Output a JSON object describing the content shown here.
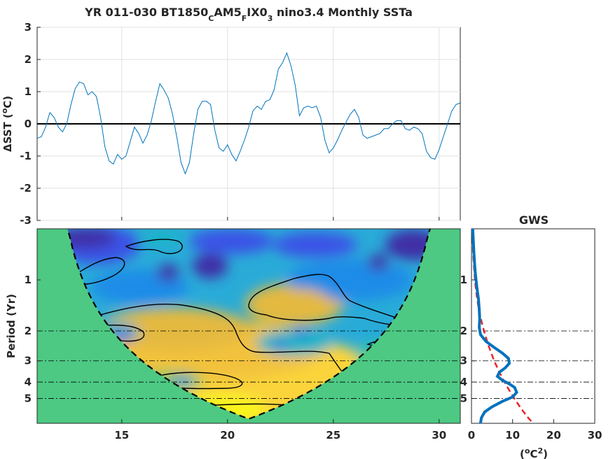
{
  "chart_data": [
    {
      "type": "line",
      "title": "YR 011-030 BT1850CAM5FIX03 nino3.4 Monthly SSTa",
      "title_parts": [
        {
          "text": "YR 011-030 BT1850",
          "sub": false
        },
        {
          "text": "C",
          "sub": true
        },
        {
          "text": "AM5",
          "sub": false
        },
        {
          "text": "F",
          "sub": true
        },
        {
          "text": "IX0",
          "sub": false
        },
        {
          "text": "3",
          "sub": true
        },
        {
          "text": " nino3.4 Monthly SSTa",
          "sub": false
        }
      ],
      "ylabel": "ΔSST (°C)",
      "ylabel_parts": [
        {
          "text": "ΔSST (",
          "sup": false
        },
        {
          "text": "o",
          "sup": true
        },
        {
          "text": "C)",
          "sup": false
        }
      ],
      "xlim": [
        11,
        31
      ],
      "ylim": [
        -3,
        3
      ],
      "yticks": [
        -3,
        -2,
        -1,
        0,
        1,
        2,
        3
      ],
      "xticks_grid": [
        15,
        20,
        25,
        30
      ],
      "grid": true,
      "zero_line": true,
      "line_color": "#0072BD",
      "x": [
        11.0,
        11.2,
        11.4,
        11.6,
        11.8,
        12.0,
        12.2,
        12.4,
        12.6,
        12.8,
        13.0,
        13.2,
        13.4,
        13.6,
        13.8,
        14.0,
        14.2,
        14.4,
        14.6,
        14.8,
        15.0,
        15.2,
        15.4,
        15.6,
        15.8,
        16.0,
        16.2,
        16.4,
        16.6,
        16.8,
        17.0,
        17.2,
        17.4,
        17.6,
        17.8,
        18.0,
        18.2,
        18.4,
        18.6,
        18.8,
        19.0,
        19.2,
        19.4,
        19.6,
        19.8,
        20.0,
        20.2,
        20.4,
        20.6,
        20.8,
        21.0,
        21.2,
        21.4,
        21.6,
        21.8,
        22.0,
        22.2,
        22.4,
        22.6,
        22.8,
        23.0,
        23.2,
        23.4,
        23.6,
        23.8,
        24.0,
        24.2,
        24.4,
        24.6,
        24.8,
        25.0,
        25.2,
        25.4,
        25.6,
        25.8,
        26.0,
        26.2,
        26.4,
        26.6,
        26.8,
        27.0,
        27.2,
        27.4,
        27.6,
        27.8,
        28.0,
        28.2,
        28.4,
        28.6,
        28.8,
        29.0,
        29.2,
        29.4,
        29.6,
        29.8,
        30.0,
        30.2,
        30.4,
        30.6,
        30.8,
        31.0
      ],
      "y": [
        -0.45,
        -0.4,
        -0.1,
        0.35,
        0.2,
        -0.1,
        -0.25,
        0.0,
        0.6,
        1.1,
        1.3,
        1.25,
        0.9,
        1.0,
        0.85,
        0.2,
        -0.7,
        -1.15,
        -1.25,
        -0.95,
        -1.1,
        -1.0,
        -0.55,
        -0.1,
        -0.3,
        -0.6,
        -0.35,
        0.1,
        0.7,
        1.25,
        1.05,
        0.8,
        0.3,
        -0.4,
        -1.2,
        -1.55,
        -1.2,
        -0.3,
        0.45,
        0.7,
        0.7,
        0.6,
        -0.2,
        -0.75,
        -0.85,
        -0.65,
        -0.95,
        -1.15,
        -0.85,
        -0.5,
        -0.1,
        0.4,
        0.55,
        0.45,
        0.7,
        0.75,
        1.05,
        1.7,
        1.9,
        2.2,
        1.8,
        1.2,
        0.25,
        0.5,
        0.55,
        0.5,
        0.55,
        0.2,
        -0.5,
        -0.9,
        -0.75,
        -0.5,
        -0.2,
        0.05,
        0.3,
        0.45,
        0.2,
        -0.35,
        -0.45,
        -0.4,
        -0.35,
        -0.3,
        -0.15,
        -0.15,
        0.0,
        0.1,
        0.1,
        -0.15,
        -0.2,
        -0.1,
        -0.15,
        -0.3,
        -0.85,
        -1.05,
        -1.1,
        -0.8,
        -0.4,
        0.0,
        0.4,
        0.6,
        0.65
      ]
    },
    {
      "type": "heatmap",
      "ylabel": "Period (Yr)",
      "xlim": [
        11,
        31
      ],
      "xticks": [
        15,
        20,
        25,
        30
      ],
      "yticks": [
        1,
        2,
        3,
        4,
        5
      ],
      "y_scale": "log2",
      "period_range": [
        0.5,
        7.0
      ],
      "reference_periods": [
        2,
        3,
        4,
        5
      ],
      "coi_fill_color": "#4DC983",
      "colormap": [
        "#3F2FA6",
        "#3A53E6",
        "#1C8CE8",
        "#1CB4C8",
        "#2EC6A0",
        "#8AC760",
        "#E4B93F",
        "#FBD43A",
        "#F9F51A"
      ],
      "significance_contour_color": "#000000",
      "coi_line_style": "dashed"
    },
    {
      "type": "line",
      "title": "GWS",
      "xlabel": "(°C2)",
      "xlabel_parts": [
        {
          "text": "(",
          "sup": false
        },
        {
          "text": "o",
          "sup": true
        },
        {
          "text": "C",
          "sup": false
        },
        {
          "text": "2",
          "sup": true
        },
        {
          "text": ")",
          "sup": false
        }
      ],
      "xlim": [
        0,
        30
      ],
      "xticks": [
        0,
        10,
        20,
        30
      ],
      "yticks": [
        1,
        2,
        3,
        4,
        5
      ],
      "y_scale": "log2",
      "reference_periods": [
        2,
        3,
        4,
        5
      ],
      "series": [
        {
          "color": "#0072BD",
          "style": "solid",
          "period": [
            0.5,
            0.7,
            0.9,
            1.1,
            1.3,
            1.5,
            1.7,
            1.9,
            2.1,
            2.3,
            2.5,
            2.7,
            2.9,
            3.1,
            3.3,
            3.5,
            3.7,
            3.9,
            4.1,
            4.3,
            4.6,
            4.9,
            5.2,
            5.6,
            6.0,
            6.5,
            7.0
          ],
          "power": [
            0.3,
            0.6,
            0.9,
            1.3,
            1.7,
            1.9,
            2.0,
            1.9,
            2.2,
            3.5,
            5.5,
            7.5,
            9.0,
            9.2,
            8.2,
            6.8,
            6.3,
            7.5,
            9.2,
            10.5,
            11.0,
            10.0,
            7.5,
            5.0,
            3.2,
            2.4,
            2.2
          ]
        },
        {
          "color": "#E8262B",
          "style": "dashed",
          "period": [
            0.5,
            0.7,
            0.9,
            1.1,
            1.3,
            1.5,
            1.7,
            1.9,
            2.1,
            2.3,
            2.5,
            2.7,
            2.9,
            3.1,
            3.3,
            3.5,
            3.7,
            3.9,
            4.1,
            4.3,
            4.6,
            4.9,
            5.2,
            5.6,
            6.0,
            6.5,
            7.0
          ],
          "power": [
            0.2,
            0.4,
            0.7,
            1.0,
            1.4,
            1.8,
            2.3,
            2.8,
            3.3,
            3.8,
            4.3,
            4.8,
            5.3,
            5.8,
            6.3,
            6.8,
            7.3,
            7.8,
            8.3,
            8.8,
            9.5,
            10.2,
            10.9,
            11.8,
            12.7,
            13.8,
            15.0
          ]
        }
      ]
    }
  ]
}
